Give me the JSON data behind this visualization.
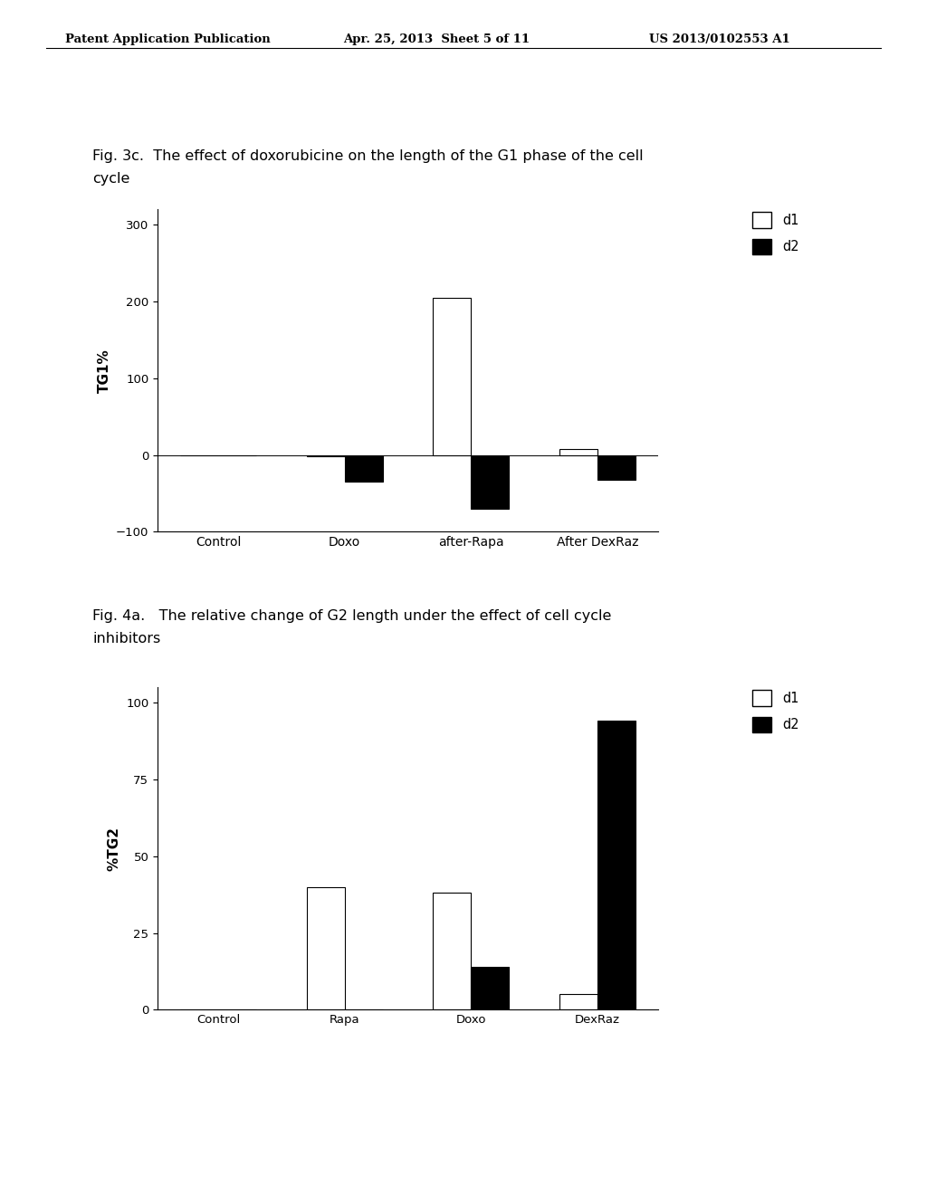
{
  "fig3c": {
    "caption_line1": "Fig. 3c.  The effect of doxorubicine on the length of the G1 phase of the cell",
    "caption_line2": "cycle",
    "categories": [
      "Control",
      "Doxo",
      "after-Rapa",
      "After DexRaz"
    ],
    "d1_values": [
      0,
      -2,
      205,
      8
    ],
    "d2_values": [
      0,
      -35,
      -70,
      -32
    ],
    "ylabel": "TG1%",
    "ylim": [
      -100,
      320
    ],
    "yticks": [
      -100,
      0,
      100,
      200,
      300
    ],
    "legend_d1": "d1",
    "legend_d2": "d2"
  },
  "fig4a": {
    "caption_line1": "Fig. 4a.   The relative change of G2 length under the effect of cell cycle",
    "caption_line2": "inhibitors",
    "categories": [
      "Control",
      "Rapa",
      "Doxo",
      "DexRaz"
    ],
    "d1_values": [
      0,
      40,
      38,
      5
    ],
    "d2_values": [
      0,
      0,
      14,
      94
    ],
    "ylabel": "%TG2",
    "ylim": [
      0,
      105
    ],
    "yticks": [
      0,
      25,
      50,
      75,
      100
    ],
    "legend_d1": "d1",
    "legend_d2": "d2"
  },
  "header_left": "Patent Application Publication",
  "header_center": "Apr. 25, 2013  Sheet 5 of 11",
  "header_right": "US 2013/0102553 A1",
  "bar_width": 0.3,
  "bar_color_d1": "#ffffff",
  "bar_color_d2": "#000000",
  "bar_edgecolor": "#000000",
  "background_color": "#ffffff",
  "font_size_caption": 11.5,
  "font_size_axis": 11,
  "font_size_tick": 9.5,
  "font_size_legend": 10.5,
  "font_size_header": 9.5
}
